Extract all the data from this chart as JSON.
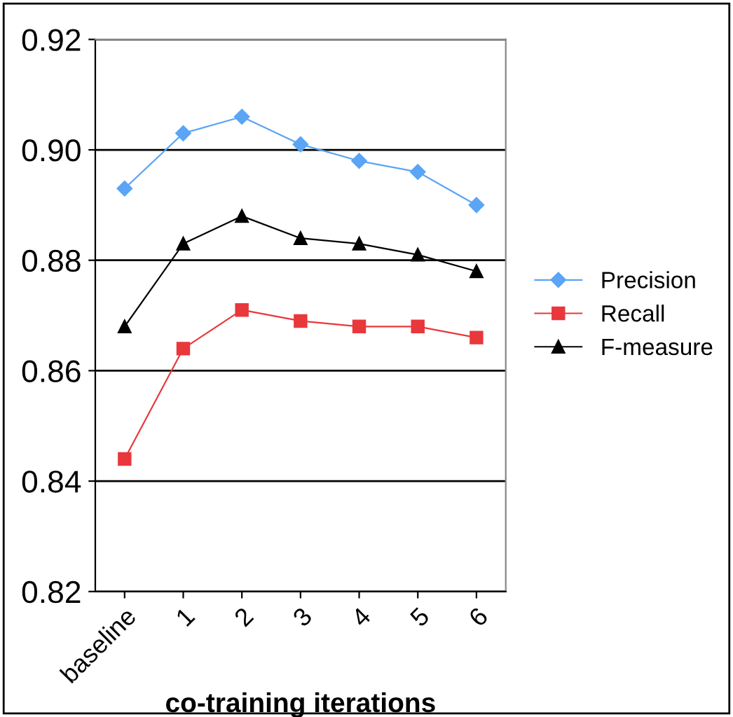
{
  "chart_data": {
    "type": "line",
    "xlabel": "co-training iterations",
    "categories": [
      "baseline",
      "1",
      "2",
      "3",
      "4",
      "5",
      "6"
    ],
    "series": [
      {
        "name": "Precision",
        "color": "#5aa5f5",
        "marker": "diamond",
        "values": [
          0.893,
          0.903,
          0.906,
          0.901,
          0.898,
          0.896,
          0.89
        ]
      },
      {
        "name": "Recall",
        "color": "#e8383c",
        "marker": "square",
        "values": [
          0.844,
          0.864,
          0.871,
          0.869,
          0.868,
          0.868,
          0.866
        ]
      },
      {
        "name": "F-measure",
        "color": "#000000",
        "marker": "triangle",
        "values": [
          0.868,
          0.883,
          0.888,
          0.884,
          0.883,
          0.881,
          0.878
        ]
      }
    ],
    "ylim": [
      0.82,
      0.92
    ],
    "yticks": [
      {
        "value": 0.82,
        "label": "0.82"
      },
      {
        "value": 0.84,
        "label": "0.84"
      },
      {
        "value": 0.86,
        "label": "0.86"
      },
      {
        "value": 0.88,
        "label": "0.88"
      },
      {
        "value": 0.9,
        "label": "0.90"
      },
      {
        "value": 0.92,
        "label": "0.92"
      }
    ],
    "grid": "y",
    "legend": "right",
    "line_style": "solid"
  }
}
